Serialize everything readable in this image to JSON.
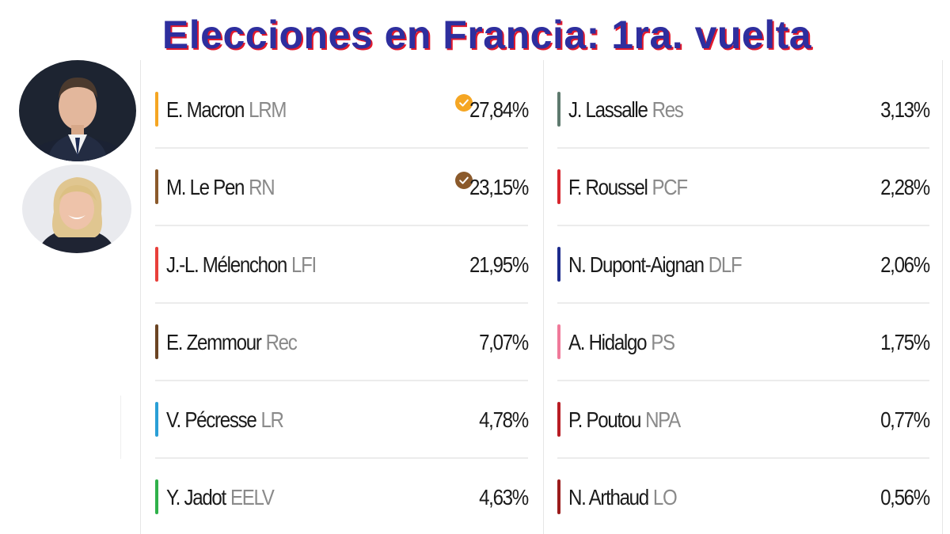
{
  "title": "Elecciones en Francia: 1ra. vuelta",
  "left_column": [
    {
      "name": "E. Macron",
      "party": "LRM",
      "percent": "27,84%",
      "color": "#f5a623",
      "qualified": true
    },
    {
      "name": "M. Le Pen",
      "party": "RN",
      "percent": "23,15%",
      "color": "#8b5a2b",
      "qualified": true
    },
    {
      "name": "J.-L. Mélenchon",
      "party": "LFI",
      "percent": "21,95%",
      "color": "#e8403b",
      "qualified": false
    },
    {
      "name": "E. Zemmour",
      "party": "Rec",
      "percent": "7,07%",
      "color": "#6b4423",
      "qualified": false
    },
    {
      "name": "V. Pécresse",
      "party": "LR",
      "percent": "4,78%",
      "color": "#2a9fd6",
      "qualified": false
    },
    {
      "name": "Y. Jadot",
      "party": "EELV",
      "percent": "4,63%",
      "color": "#2fb14a",
      "qualified": false
    }
  ],
  "right_column": [
    {
      "name": "J. Lassalle",
      "party": "Res",
      "percent": "3,13%",
      "color": "#5e7a6e"
    },
    {
      "name": "F. Roussel",
      "party": "PCF",
      "percent": "2,28%",
      "color": "#d7262e"
    },
    {
      "name": "N. Dupont-Aignan",
      "party": "DLF",
      "percent": "2,06%",
      "color": "#1d2b8c"
    },
    {
      "name": "A. Hidalgo",
      "party": "PS",
      "percent": "1,75%",
      "color": "#f07a9a"
    },
    {
      "name": "P. Poutou",
      "party": "NPA",
      "percent": "0,77%",
      "color": "#b81d24"
    },
    {
      "name": "N. Arthaud",
      "party": "LO",
      "percent": "0,56%",
      "color": "#9b1c1c"
    }
  ]
}
